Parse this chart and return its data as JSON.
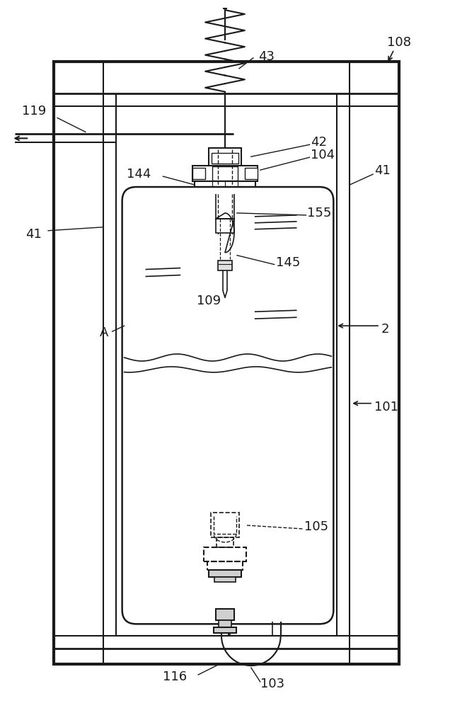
{
  "bg_color": "#ffffff",
  "line_color": "#1a1a1a",
  "fig_width": 6.36,
  "fig_height": 10.0,
  "dpi": 100
}
